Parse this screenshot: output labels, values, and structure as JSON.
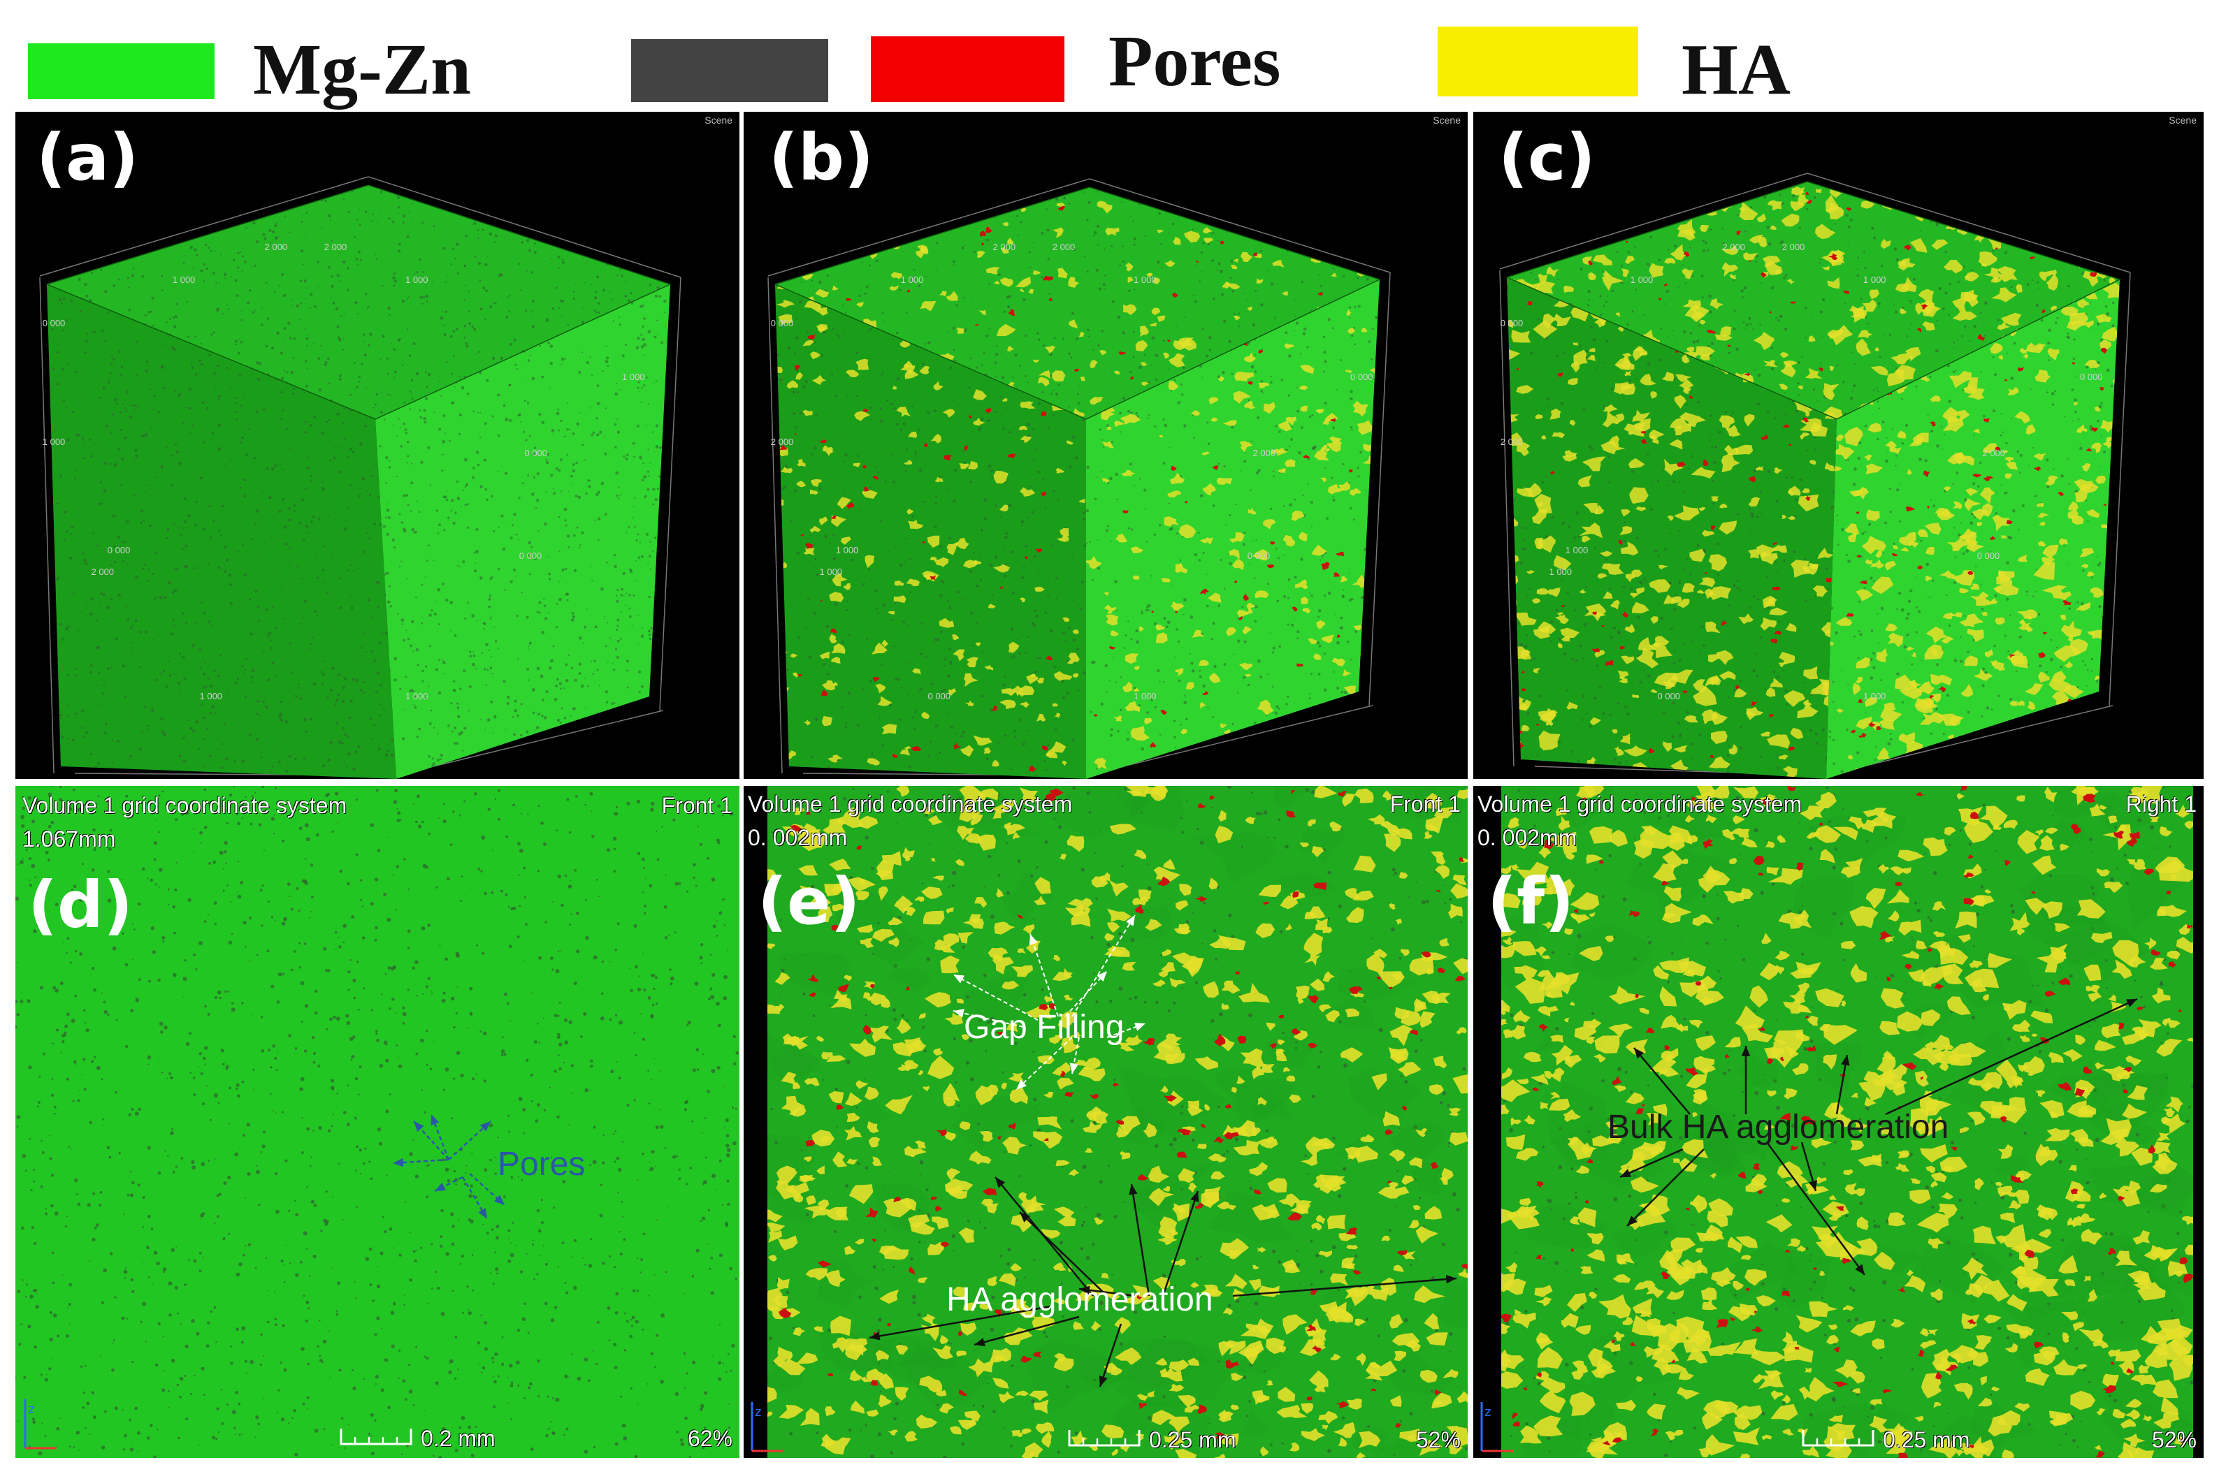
{
  "legend": [
    {
      "label": "Mg-Zn",
      "color": "#1ee81e"
    },
    {
      "label": "",
      "color": "#434343"
    },
    {
      "label": "Pores",
      "color": "#f20000"
    },
    {
      "label": "HA",
      "color": "#f7ee00"
    }
  ],
  "panels_3d": [
    {
      "label": "(a)",
      "scene_tag": "Scene",
      "ticks": [
        "2 000",
        "2 000",
        "1 000",
        "1 000",
        "0 000",
        "1 000",
        "1 000",
        "0 000",
        "0 000",
        "2 000",
        "0 000",
        "1 000",
        "1 000"
      ]
    },
    {
      "label": "(b)",
      "scene_tag": "Scene",
      "ticks": [
        "2 000",
        "2 000",
        "1 000",
        "1 000",
        "0 000",
        "0 000",
        "2 000",
        "2 000",
        "1 000",
        "1 000",
        "0 000",
        "0 000",
        "1 000"
      ]
    },
    {
      "label": "(c)",
      "scene_tag": "Scene",
      "ticks": [
        "2 000",
        "2 000",
        "1 000",
        "1 000",
        "0 000",
        "0 000",
        "2 000",
        "2 000",
        "1 000",
        "1 000",
        "0 000",
        "0 000",
        "1 000"
      ]
    }
  ],
  "panels_2d": [
    {
      "label": "(d)",
      "header": "Volume 1 grid coordinate system",
      "view": "Front 1",
      "value": "1.067mm",
      "scale": "0.2 mm",
      "zoom": "62%",
      "annotations": [
        "Pores"
      ]
    },
    {
      "label": "(e)",
      "header": "Volume 1 grid coordinate system",
      "view": "Front 1",
      "value": "0. 002mm",
      "scale": "0.25 mm",
      "zoom": "52%",
      "annotations": [
        "Gap Filling",
        "HA agglomeration"
      ]
    },
    {
      "label": "(f)",
      "header": "Volume 1 grid coordinate system",
      "view": "Right 1",
      "value": "0. 002mm",
      "scale": "0.25 mm",
      "zoom": "52%",
      "annotations": [
        "Bulk HA agglomeration"
      ]
    }
  ],
  "colors": {
    "matrix_top": "#23b823",
    "matrix_left": "#1a9e1a",
    "matrix_right": "#2fd42f",
    "slice_bg": "#22c622",
    "slice_dark_bg": "#1faa1f",
    "pore": "#cc1010",
    "ha": "#e4e02a",
    "dark_phase": "#2f5f2f",
    "pores_annotation": "#2a58a8",
    "white_annotation": "#ffffff"
  }
}
